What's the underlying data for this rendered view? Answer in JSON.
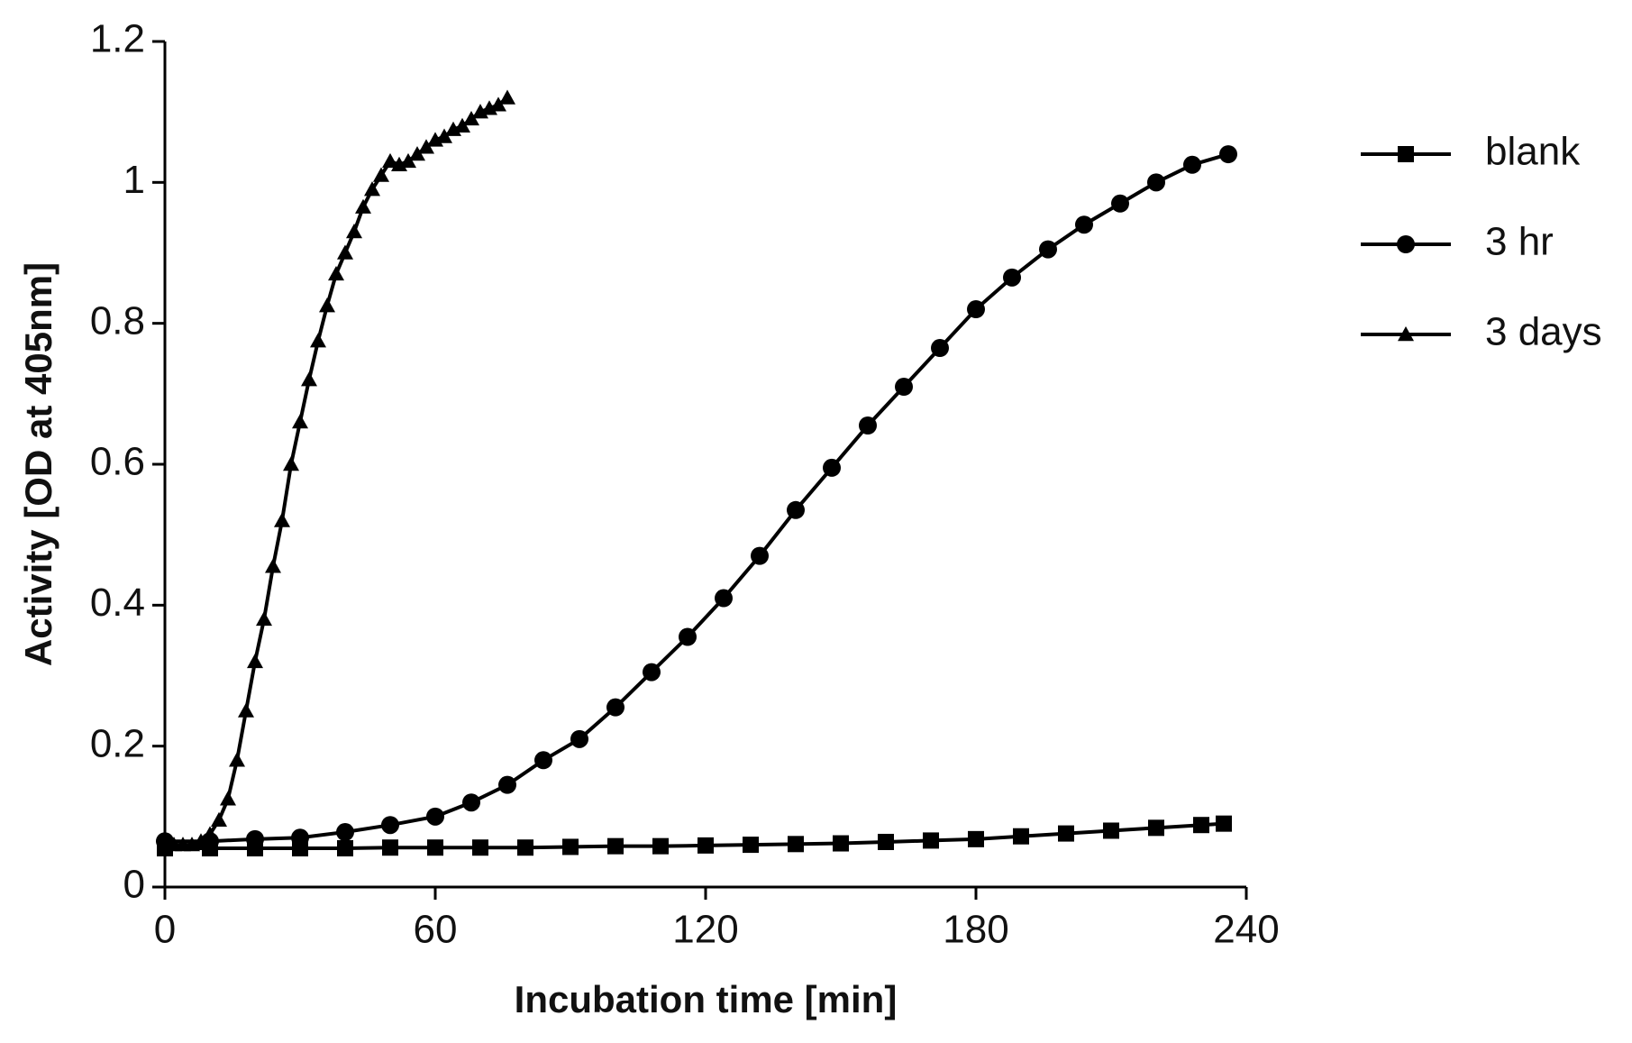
{
  "chart_data": {
    "type": "line",
    "xlabel": "Incubation time [min]",
    "ylabel": "Activity [OD at 405nm]",
    "xlim": [
      0,
      240
    ],
    "xticks": [
      0,
      60,
      120,
      180,
      240
    ],
    "ylim": [
      0,
      1.2
    ],
    "yticks": [
      0,
      0.2,
      0.4,
      0.6,
      0.8,
      1,
      1.2
    ],
    "grid": false,
    "legend": "right",
    "series": [
      {
        "name": "blank",
        "color": "#000000",
        "marker": "square",
        "x": [
          0,
          10,
          20,
          30,
          40,
          50,
          60,
          70,
          80,
          90,
          100,
          110,
          120,
          130,
          140,
          150,
          160,
          170,
          180,
          190,
          200,
          210,
          220,
          230,
          235
        ],
        "values": [
          0.055,
          0.055,
          0.055,
          0.055,
          0.055,
          0.056,
          0.056,
          0.056,
          0.056,
          0.057,
          0.058,
          0.058,
          0.059,
          0.06,
          0.061,
          0.062,
          0.064,
          0.066,
          0.068,
          0.072,
          0.076,
          0.08,
          0.084,
          0.088,
          0.09
        ]
      },
      {
        "name": "3 hr",
        "color": "#000000",
        "marker": "circle",
        "x": [
          0,
          10,
          20,
          30,
          40,
          50,
          60,
          68,
          76,
          84,
          92,
          100,
          108,
          116,
          124,
          132,
          140,
          148,
          156,
          164,
          172,
          180,
          188,
          196,
          204,
          212,
          220,
          228,
          236
        ],
        "values": [
          0.065,
          0.065,
          0.068,
          0.07,
          0.078,
          0.088,
          0.1,
          0.12,
          0.145,
          0.18,
          0.21,
          0.255,
          0.305,
          0.355,
          0.41,
          0.47,
          0.535,
          0.595,
          0.655,
          0.71,
          0.765,
          0.82,
          0.865,
          0.905,
          0.94,
          0.97,
          1.0,
          1.025,
          1.04
        ]
      },
      {
        "name": "3 days",
        "color": "#000000",
        "marker": "triangle",
        "x": [
          0,
          2,
          4,
          6,
          8,
          10,
          12,
          14,
          16,
          18,
          20,
          22,
          24,
          26,
          28,
          30,
          32,
          34,
          36,
          38,
          40,
          42,
          44,
          46,
          48,
          50,
          52,
          54,
          56,
          58,
          60,
          62,
          64,
          66,
          68,
          70,
          72,
          74,
          76
        ],
        "values": [
          0.06,
          0.06,
          0.06,
          0.06,
          0.065,
          0.075,
          0.095,
          0.125,
          0.18,
          0.25,
          0.32,
          0.38,
          0.455,
          0.52,
          0.6,
          0.66,
          0.72,
          0.775,
          0.825,
          0.87,
          0.9,
          0.93,
          0.965,
          0.99,
          1.01,
          1.03,
          1.025,
          1.03,
          1.04,
          1.05,
          1.06,
          1.065,
          1.075,
          1.08,
          1.09,
          1.1,
          1.105,
          1.11,
          1.12
        ]
      }
    ]
  }
}
